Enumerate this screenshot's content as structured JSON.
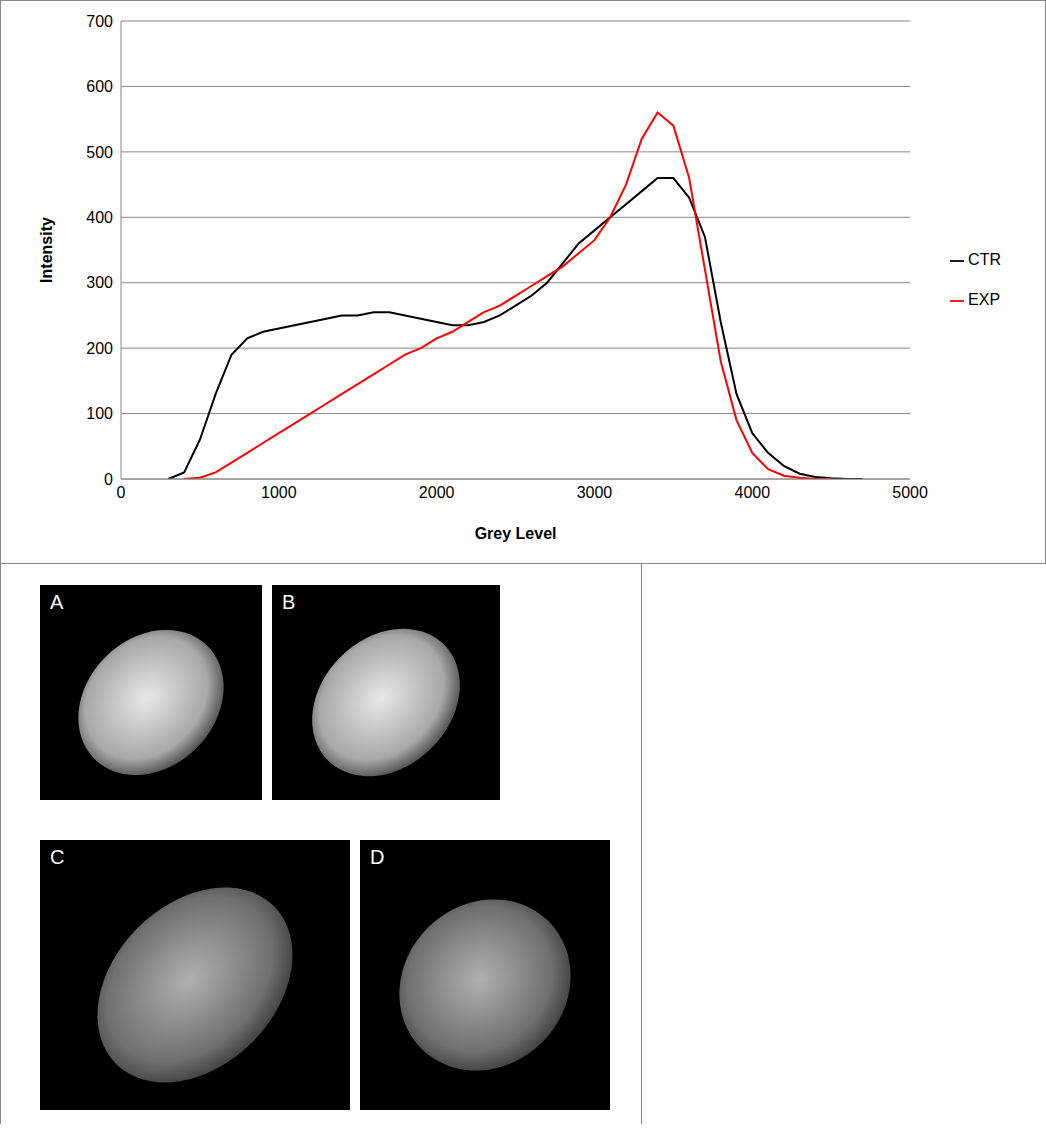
{
  "chart_data": {
    "type": "line",
    "x_label": "Grey Level",
    "y_label": "Intensity",
    "x": [
      300,
      400,
      500,
      600,
      700,
      800,
      900,
      1000,
      1100,
      1200,
      1300,
      1400,
      1500,
      1600,
      1700,
      1800,
      1900,
      2000,
      2100,
      2200,
      2300,
      2400,
      2500,
      2600,
      2700,
      2800,
      2900,
      3000,
      3100,
      3200,
      3300,
      3400,
      3500,
      3600,
      3700,
      3800,
      3900,
      4000,
      4100,
      4200,
      4300,
      4400,
      4500,
      4600,
      4700
    ],
    "series": [
      {
        "name": "CTR",
        "color": "#000000",
        "values": [
          0,
          10,
          60,
          130,
          190,
          215,
          225,
          230,
          235,
          240,
          245,
          250,
          250,
          255,
          255,
          250,
          245,
          240,
          235,
          235,
          240,
          250,
          265,
          280,
          300,
          330,
          360,
          380,
          400,
          420,
          440,
          460,
          460,
          430,
          370,
          240,
          130,
          70,
          40,
          20,
          8,
          3,
          1,
          0,
          0
        ]
      },
      {
        "name": "EXP",
        "color": "#ff0000",
        "values": [
          null,
          0,
          2,
          10,
          25,
          40,
          55,
          70,
          85,
          100,
          115,
          130,
          145,
          160,
          175,
          190,
          200,
          215,
          225,
          240,
          255,
          265,
          280,
          295,
          310,
          325,
          345,
          365,
          400,
          450,
          520,
          560,
          540,
          460,
          320,
          180,
          90,
          40,
          15,
          5,
          2,
          0,
          0,
          null,
          null
        ]
      }
    ],
    "xlim": [
      0,
      5000
    ],
    "xticks": [
      0,
      1000,
      2000,
      3000,
      4000,
      5000
    ],
    "ylim": [
      0,
      700
    ],
    "yticks": [
      0,
      100,
      200,
      300,
      400,
      500,
      600,
      700
    ],
    "grid": true,
    "legend": "right"
  },
  "panels": [
    {
      "label": "A"
    },
    {
      "label": "B"
    },
    {
      "label": "C"
    },
    {
      "label": "D"
    }
  ]
}
